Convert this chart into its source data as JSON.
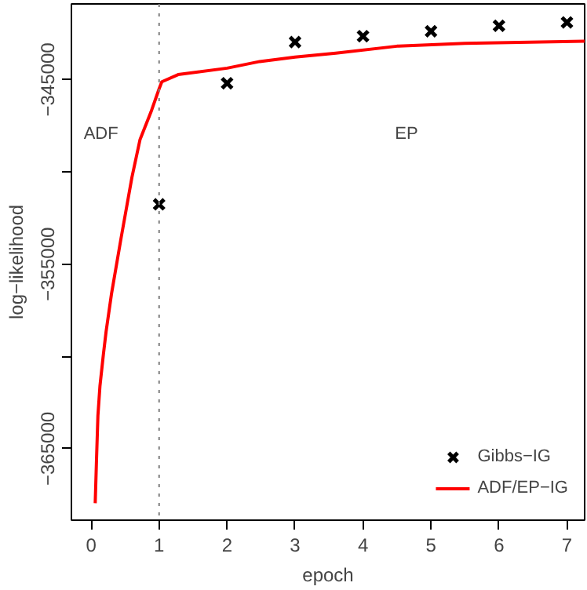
{
  "chart_data": {
    "type": "line",
    "xlabel": "epoch",
    "ylabel": "log−likelihood",
    "xlim": [
      -0.29,
      7.26
    ],
    "ylim": [
      -368870,
      -340900
    ],
    "xticks": [
      0,
      1,
      2,
      3,
      4,
      5,
      6,
      7
    ],
    "yticks": [
      -345000,
      {
        "value": -350000,
        "label": null
      },
      -355000,
      {
        "value": -360000,
        "label": null
      },
      -365000
    ],
    "grid": false,
    "legend": "bottom right",
    "ref_lines": [
      {
        "axis": "x",
        "value": 1,
        "label": null,
        "color": "#808080",
        "line_style": "dotted"
      }
    ],
    "annotations": [
      "ADF",
      "EP"
    ],
    "series": [
      {
        "name": "Gibbs−IG",
        "type": "scatter",
        "marker": "cross",
        "color": "#000000",
        "x": [
          1,
          2,
          3,
          4,
          5,
          6,
          7
        ],
        "values": [
          -351760,
          -345200,
          -342970,
          -342650,
          -342380,
          -342080,
          -341900
        ]
      },
      {
        "name": "ADF/EP−IG",
        "color": "#ff0000",
        "line_style": "solid",
        "x": [
          0.06,
          0.08,
          0.1,
          0.13,
          0.18,
          0.22,
          0.3,
          0.44,
          0.6,
          0.72,
          0.88,
          1.0,
          1.04,
          1.28,
          2.0,
          2.48,
          3.0,
          3.6,
          4.5,
          5.5,
          7.26
        ],
        "values": [
          -367950,
          -365500,
          -363200,
          -361600,
          -359900,
          -358660,
          -356600,
          -353600,
          -350300,
          -348240,
          -346760,
          -345500,
          -345120,
          -344730,
          -344380,
          -344020,
          -343780,
          -343570,
          -343190,
          -343040,
          -342920
        ]
      }
    ]
  }
}
